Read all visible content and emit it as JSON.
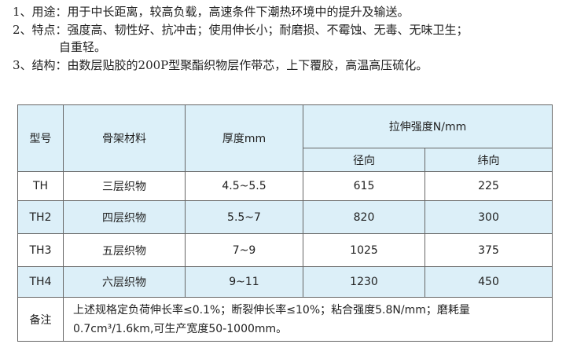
{
  "intro": [
    "1、用途：用于中长距离，较高负载，高速条件下潮热环境中的提升及输送。",
    "2、特点：强度高、韧性好、抗冲击；使用伸长小；耐磨损、不霉蚀、无毒、无味卫生；",
    "自重轻。",
    "3、结构：由数层贴胶的200P型聚酯织物层作带芯，上下覆胶，高温高压硫化。"
  ],
  "table": {
    "headers": {
      "model": "型号",
      "material": "骨架材料",
      "thickness": "厚度mm",
      "strength": "拉伸强度N/mm",
      "warp": "径向",
      "weft": "纬向"
    },
    "rows": [
      [
        "TH",
        "三层织物",
        "4.5~5.5",
        "615",
        "225"
      ],
      [
        "TH2",
        "四层织物",
        "5.5~7",
        "820",
        "300"
      ],
      [
        "TH3",
        "五层织物",
        "7~9",
        "1025",
        "375"
      ],
      [
        "TH4",
        "六层织物",
        "9~11",
        "1230",
        "450"
      ]
    ],
    "remark_label": "备注",
    "remark_lines": [
      "上述规格定负荷伸长率≤0.1%；断裂伸长率≤10%；粘合强度5.8N/mm；磨耗量",
      "0.7cm³/1.6km,可生产宽度50-1000mm。"
    ]
  },
  "colors": {
    "header_bg": "#dcf0f9",
    "alt_row_bg": "#dcf0f9"
  }
}
